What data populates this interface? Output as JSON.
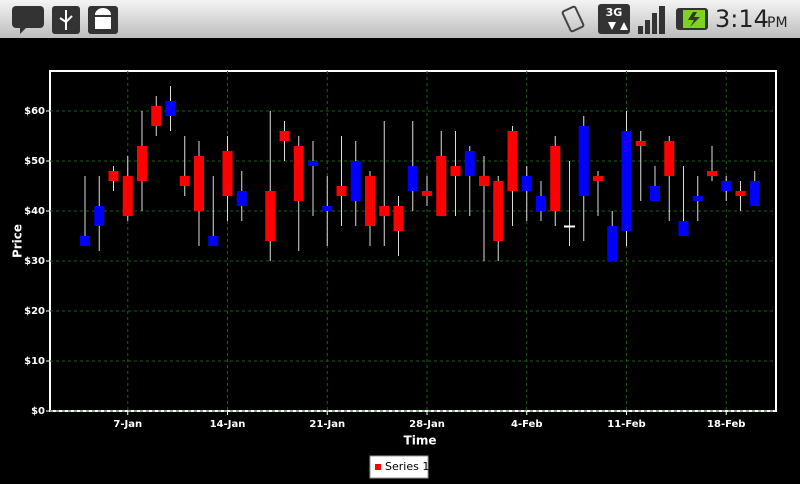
{
  "status_bar": {
    "network": "3G",
    "time": "3:14",
    "ampm": "PM"
  },
  "chart_data": {
    "type": "candlestick",
    "x_label": "Time",
    "y_label": "Price",
    "categories": [
      null,
      null,
      null,
      "7-Jan",
      null,
      null,
      null,
      null,
      null,
      null,
      "14-Jan",
      null,
      null,
      null,
      null,
      null,
      null,
      "21-Jan",
      null,
      null,
      null,
      null,
      null,
      null,
      "28-Jan",
      null,
      null,
      null,
      null,
      null,
      null,
      "4-Feb",
      null,
      null,
      null,
      null,
      null,
      null,
      "11-Feb",
      null,
      null,
      null,
      null,
      null,
      null,
      "18-Feb",
      null,
      null
    ],
    "series": [
      {
        "name": "Series 1",
        "color": "#ff0000",
        "increasing_color": "#0000ff",
        "unchanged_color": "#ffffff",
        "open": [
          33,
          37,
          48,
          47,
          53,
          61,
          59,
          47,
          51,
          33,
          52,
          41,
          null,
          44,
          56,
          53,
          49,
          40,
          45,
          42,
          47,
          41,
          41,
          44,
          44,
          51,
          49,
          47,
          47,
          46,
          56,
          44,
          40,
          53,
          37,
          43,
          47,
          30,
          36,
          54,
          42,
          54,
          35,
          42,
          48,
          44,
          44,
          41
        ],
        "high": [
          47,
          47,
          49,
          51,
          60,
          63,
          65,
          55,
          54,
          47,
          55,
          48,
          null,
          60,
          58,
          55,
          54,
          47,
          55,
          54,
          48,
          58,
          43,
          58,
          47,
          56,
          56,
          53,
          51,
          47,
          57,
          49,
          46,
          55,
          50,
          59,
          48,
          40,
          60,
          56,
          49,
          55,
          49,
          47,
          53,
          47,
          46,
          48
        ],
        "low": [
          33,
          32,
          44,
          38,
          40,
          55,
          56,
          43,
          33,
          33,
          38,
          38,
          null,
          30,
          50,
          32,
          39,
          33,
          37,
          37,
          33,
          33,
          31,
          40,
          41,
          39,
          39,
          39,
          30,
          30,
          37,
          38,
          38,
          37,
          33,
          34,
          39,
          30,
          33,
          42,
          42,
          38,
          35,
          38,
          46,
          42,
          40,
          41
        ],
        "close": [
          35,
          41,
          46,
          39,
          46,
          57,
          62,
          45,
          40,
          35,
          43,
          44,
          null,
          34,
          54,
          42,
          50,
          41,
          43,
          50,
          37,
          39,
          36,
          49,
          43,
          39,
          47,
          52,
          45,
          34,
          44,
          47,
          43,
          40,
          37,
          57,
          46,
          37,
          56,
          53,
          45,
          47,
          38,
          43,
          47,
          46,
          43,
          46
        ]
      }
    ],
    "ylim": [
      0,
      68
    ],
    "yticks": [
      {
        "value": 0,
        "label": "$0"
      },
      {
        "value": 10,
        "label": "$10"
      },
      {
        "value": 20,
        "label": "$20"
      },
      {
        "value": 30,
        "label": "$30"
      },
      {
        "value": 40,
        "label": "$40"
      },
      {
        "value": 50,
        "label": "$50"
      },
      {
        "value": 60,
        "label": "$60"
      }
    ],
    "grid": true,
    "legend": "bottom"
  }
}
